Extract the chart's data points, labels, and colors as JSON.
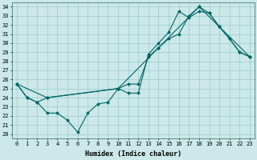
{
  "xlabel": "Humidex (Indice chaleur)",
  "xlim": [
    -0.5,
    23.5
  ],
  "ylim": [
    19.5,
    34.5
  ],
  "xticks": [
    0,
    1,
    2,
    3,
    4,
    5,
    6,
    7,
    8,
    9,
    10,
    11,
    12,
    13,
    14,
    15,
    16,
    17,
    18,
    19,
    20,
    21,
    22,
    23
  ],
  "yticks": [
    20,
    21,
    22,
    23,
    24,
    25,
    26,
    27,
    28,
    29,
    30,
    31,
    32,
    33,
    34
  ],
  "bg_color": "#cce8e8",
  "line_color": "#006666",
  "line1_x": [
    0,
    1,
    2,
    3,
    4,
    5,
    6,
    7,
    8,
    9,
    10,
    11,
    12,
    13,
    14,
    15,
    16,
    17,
    18,
    19,
    20,
    21,
    22,
    23
  ],
  "line1_y": [
    25.5,
    24.0,
    23.5,
    22.3,
    22.3,
    21.5,
    20.2,
    22.3,
    23.3,
    23.5,
    25.0,
    24.5,
    24.5,
    28.8,
    30.0,
    31.2,
    33.5,
    32.8,
    33.5,
    33.3,
    31.8,
    30.5,
    29.0,
    28.5
  ],
  "line2_x": [
    0,
    1,
    2,
    3,
    10,
    11,
    12,
    13,
    14,
    15,
    16,
    17,
    18,
    19,
    20,
    21,
    22,
    23
  ],
  "line2_y": [
    25.5,
    24.0,
    23.5,
    24.0,
    25.0,
    25.5,
    25.5,
    28.5,
    29.5,
    30.5,
    31.0,
    33.0,
    34.0,
    33.3,
    31.8,
    30.5,
    29.0,
    28.5
  ],
  "line3_x": [
    0,
    3,
    10,
    14,
    18,
    20,
    23
  ],
  "line3_y": [
    25.5,
    24.0,
    25.0,
    29.5,
    34.0,
    31.8,
    28.5
  ],
  "grid_color": "#99cccc",
  "tick_fontsize": 5,
  "xlabel_fontsize": 6
}
